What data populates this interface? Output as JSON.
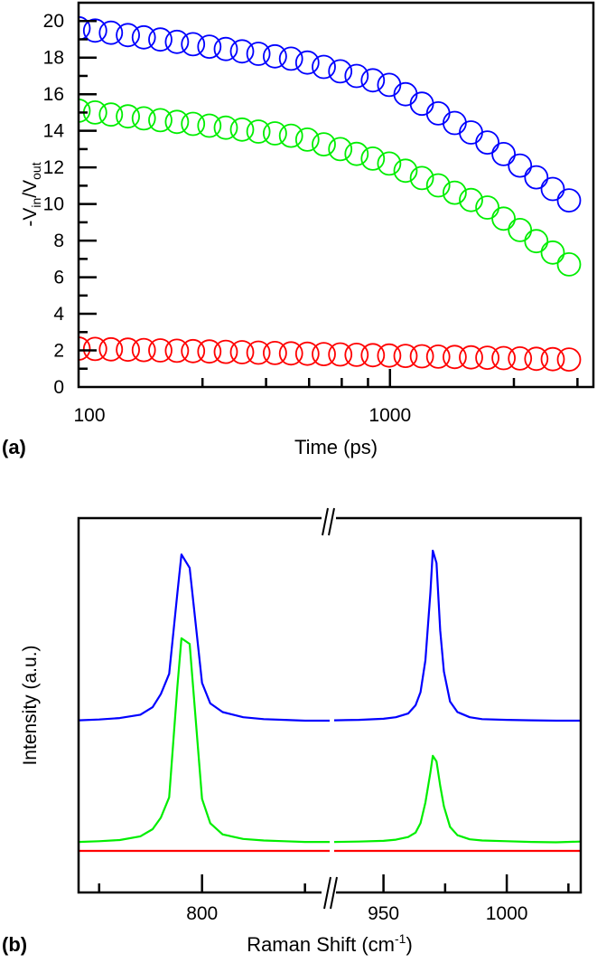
{
  "chart_data": [
    {
      "type": "scatter",
      "panel_label": "(a)",
      "xlabel": "Time (ps)",
      "ylabel": {
        "main": "-V",
        "sub1": "in",
        "mid": "/V",
        "sub2": "out"
      },
      "xscale": "log",
      "xlim": [
        100,
        4500
      ],
      "ylim": [
        0,
        21
      ],
      "x_major_ticks": [
        100,
        1000
      ],
      "x_major_tick_labels": [
        "100",
        "1000"
      ],
      "x_minor_ticks": [
        250,
        400,
        550,
        700,
        850,
        2500,
        4000
      ],
      "y_ticks": [
        0,
        2,
        4,
        6,
        8,
        10,
        12,
        14,
        16,
        18,
        20
      ],
      "y_tick_labels": [
        "0",
        "2",
        "4",
        "6",
        "8",
        "10",
        "12",
        "14",
        "16",
        "18",
        "20"
      ],
      "y_minor_ticks": [
        1,
        3,
        5,
        7,
        9,
        11,
        13,
        15,
        17,
        19
      ],
      "grid": false,
      "marker": "open-circle",
      "x": [
        100,
        113,
        127,
        144,
        162,
        183,
        207,
        233,
        263,
        297,
        335,
        378,
        427,
        481,
        543,
        613,
        692,
        781,
        881,
        994,
        1122,
        1266,
        1429,
        1613,
        1820,
        2054,
        2317,
        2615,
        2951,
        3331,
        3758
      ],
      "series": [
        {
          "color": "#0000ff",
          "values": [
            19.6,
            19.48,
            19.36,
            19.23,
            19.11,
            18.99,
            18.86,
            18.73,
            18.6,
            18.47,
            18.34,
            18.21,
            18.07,
            17.94,
            17.73,
            17.49,
            17.25,
            17.0,
            16.76,
            16.51,
            16.0,
            15.48,
            14.95,
            14.43,
            13.91,
            13.36,
            12.73,
            12.1,
            11.46,
            10.82,
            10.2
          ]
        },
        {
          "color": "#00ee00",
          "values": [
            15.1,
            15.0,
            14.89,
            14.79,
            14.68,
            14.58,
            14.49,
            14.38,
            14.28,
            14.17,
            14.07,
            13.96,
            13.86,
            13.73,
            13.52,
            13.26,
            13.0,
            12.74,
            12.48,
            12.21,
            11.82,
            11.42,
            11.02,
            10.62,
            10.22,
            9.81,
            9.2,
            8.58,
            7.97,
            7.35,
            6.7
          ]
        },
        {
          "color": "#ff0000",
          "values": [
            2.1,
            2.08,
            2.06,
            2.04,
            2.02,
            2.0,
            1.98,
            1.96,
            1.94,
            1.92,
            1.9,
            1.88,
            1.86,
            1.84,
            1.82,
            1.8,
            1.78,
            1.76,
            1.74,
            1.72,
            1.7,
            1.68,
            1.66,
            1.64,
            1.62,
            1.6,
            1.58,
            1.56,
            1.54,
            1.52,
            1.5
          ]
        }
      ]
    },
    {
      "type": "line",
      "panel_label": "(b)",
      "xlabel": {
        "main": "Raman Shift (cm",
        "sup": "-1",
        "end": ")"
      },
      "ylabel": "Intensity (a.u.)",
      "broken_x_axis": true,
      "xlim_segments": [
        [
          770,
          831
        ],
        [
          930,
          1030
        ]
      ],
      "x_major_ticks": [
        800,
        950,
        1000
      ],
      "x_major_tick_labels": [
        "800",
        "950",
        "1000"
      ],
      "x_minor_ticks": [
        775,
        825,
        975,
        1025
      ],
      "y_ticks_shown": false,
      "ylim": [
        0,
        100
      ],
      "grid": false,
      "segments": [
        {
          "x": [
            770,
            775,
            780,
            785,
            788,
            790,
            792,
            794,
            795,
            797,
            800,
            802,
            805,
            810,
            815,
            820,
            825,
            831
          ],
          "series": [
            {
              "color": "#0000ff",
              "values": [
                46.0,
                46.2,
                46.6,
                47.5,
                49.5,
                53,
                58.4,
                80,
                90.3,
                86.7,
                56,
                50.5,
                48.2,
                46.8,
                46.3,
                46.1,
                45.9,
                45.9
              ]
            },
            {
              "color": "#00ee00",
              "values": [
                13.5,
                13.7,
                14.0,
                15.0,
                16.9,
                20,
                25.4,
                55,
                67.9,
                66.4,
                25,
                18.5,
                15.5,
                14.3,
                13.9,
                13.7,
                13.5,
                13.5
              ]
            },
            {
              "color": "#ff0000",
              "values": [
                11.1,
                11.1,
                11.1,
                11.1,
                11.1,
                11.1,
                11.1,
                11.1,
                11.1,
                11.1,
                11.1,
                11.1,
                11.1,
                11.1,
                11.1,
                11.1,
                11.1,
                11.1
              ]
            }
          ]
        },
        {
          "x": [
            930,
            940,
            950,
            955,
            960,
            963,
            965,
            967,
            969,
            970,
            971.5,
            973,
            974.5,
            977,
            980,
            985,
            990,
            1000,
            1010,
            1020,
            1030
          ],
          "series": [
            {
              "color": "#0000ff",
              "values": [
                46,
                46.1,
                46.4,
                46.8,
                47.8,
                50,
                53.5,
                62,
                80,
                91.3,
                88,
                70,
                59,
                51,
                48.2,
                46.8,
                46.3,
                46.1,
                46,
                45.9,
                45.9
              ]
            },
            {
              "color": "#00ee00",
              "values": [
                13.5,
                13.6,
                13.8,
                14.1,
                14.8,
                16,
                18.5,
                24,
                32,
                36.5,
                35,
                28.5,
                23,
                17.5,
                15.3,
                14.2,
                13.9,
                13.7,
                13.5,
                13.4,
                13.6
              ]
            },
            {
              "color": "#ff0000",
              "values": [
                11.1,
                11.1,
                11.1,
                11.1,
                11.1,
                11.1,
                11.1,
                11.1,
                11.1,
                11.1,
                11.1,
                11.1,
                11.1,
                11.1,
                11.1,
                11.1,
                11.1,
                11.1,
                11.1,
                11.1,
                11.1
              ]
            }
          ]
        }
      ]
    }
  ]
}
